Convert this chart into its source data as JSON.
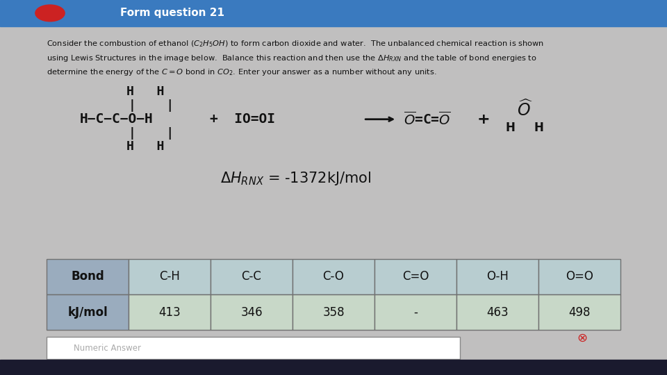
{
  "bg_color": "#c0bfbf",
  "title_bar_color": "#4a90d9",
  "bond_headers": [
    "Bond",
    "C-H",
    "C-C",
    "C-O",
    "C=O",
    "O-H",
    "O=O"
  ],
  "bond_values": [
    "kJ/mol",
    "413",
    "346",
    "358",
    "-",
    "463",
    "498"
  ],
  "header_bg": "#9aacbe",
  "header_bg2": "#b8cdd0",
  "table_bg": "#c8d8c8",
  "table_border": "#707070",
  "taskbar_color": "#1a1a2e"
}
